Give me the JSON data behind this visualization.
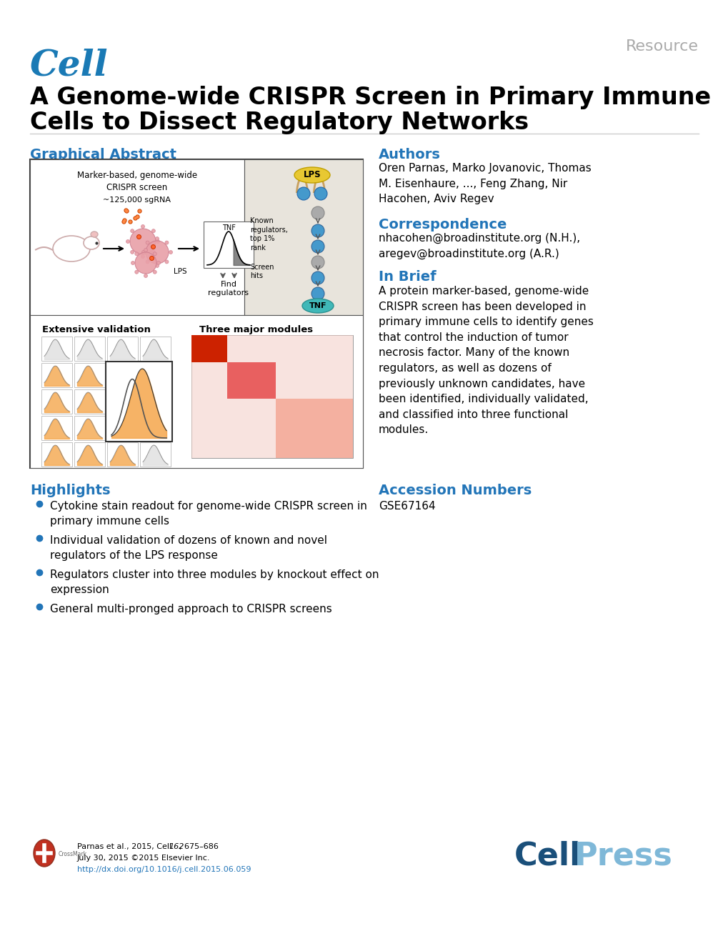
{
  "background_color": "#ffffff",
  "resource_text": "Resource",
  "resource_color": "#aaaaaa",
  "resource_fontsize": 16,
  "cell_text": "Cell",
  "cell_color": "#1a7ab5",
  "cell_fontsize": 36,
  "title_line1": "A Genome-wide CRISPR Screen in Primary Immune",
  "title_line2": "Cells to Dissect Regulatory Networks",
  "title_fontsize": 24,
  "title_color": "#000000",
  "section_color": "#2275b8",
  "graphical_abstract_label": "Graphical Abstract",
  "authors_label": "Authors",
  "authors_text": "Oren Parnas, Marko Jovanovic, Thomas\nM. Eisenhaure, ..., Feng Zhang, Nir\nHacohen, Aviv Regev",
  "correspondence_label": "Correspondence",
  "correspondence_text": "nhacohen@broadinstitute.org (N.H.),\naregev@broadinstitute.org (A.R.)",
  "inbrief_label": "In Brief",
  "inbrief_text": "A protein marker-based, genome-wide\nCRISPR screen has been developed in\nprimary immune cells to identify genes\nthat control the induction of tumor\nnecrosis factor. Many of the known\nregulators, as well as dozens of\npreviously unknown candidates, have\nbeen identified, individually validated,\nand classified into three functional\nmodules.",
  "highlights_label": "Highlights",
  "highlights": [
    "Cytokine stain readout for genome-wide CRISPR screen in\nprimary immune cells",
    "Individual validation of dozens of known and novel\nregulators of the LPS response",
    "Regulators cluster into three modules by knockout effect on\nexpression",
    "General multi-pronged approach to CRISPR screens"
  ],
  "accession_label": "Accession Numbers",
  "accession_text": "GSE67164",
  "footer_line1": "Parnas et al., 2015, Cell ",
  "footer_line1b": "162",
  "footer_line1c": ", 675–686",
  "footer_line2": "July 30, 2015 ©2015 Elsevier Inc.",
  "footer_link": "http://dx.doi.org/10.1016/j.cell.2015.06.059",
  "footer_color": "#000000",
  "footer_link_color": "#2275b8",
  "cellpress_cell_color": "#1a4f7a",
  "cellpress_press_color": "#7fb8d8",
  "section_fontsize": 14,
  "body_fontsize": 11,
  "highlight_dot_color": "#2275b8",
  "border_color": "#444444",
  "lps_yellow": "#e8c832",
  "tnf_teal": "#40b8b8",
  "pathway_blue": "#4499cc",
  "pathway_gray": "#aaaaaa",
  "cell_pink": "#e8a0a8",
  "orange_hist": "#f4a040",
  "heatmap_red1": "#cc2200",
  "heatmap_red2": "#e86060",
  "heatmap_red3": "#f4b0a0",
  "heatmap_light": "#f8d0c8"
}
